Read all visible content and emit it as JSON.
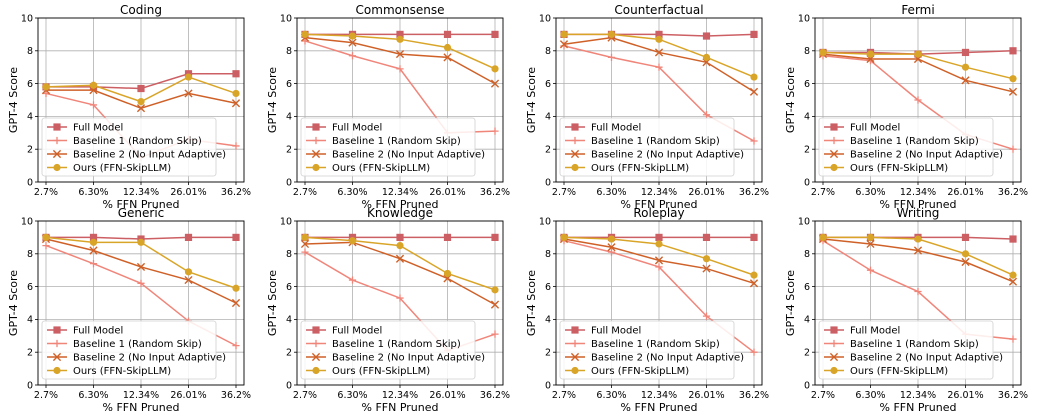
{
  "chart_data": [
    {
      "type": "line",
      "title": "Coding",
      "xlabel": "% FFN Pruned",
      "ylabel": "GPT-4 Score",
      "categories": [
        "2.7%",
        "6.30%",
        "12.34%",
        "26.01%",
        "36.2%"
      ],
      "ylim": [
        0,
        10
      ],
      "yticks": [
        0,
        2,
        4,
        6,
        8,
        10
      ],
      "grid": true,
      "legend_position": "lower-left",
      "series": [
        {
          "name": "Full Model",
          "values": [
            5.8,
            5.8,
            5.7,
            6.6,
            6.6
          ]
        },
        {
          "name": "Baseline 1 (Random Skip)",
          "values": [
            5.4,
            4.7,
            1.5,
            2.6,
            2.2
          ]
        },
        {
          "name": "Baseline 2 (No Input Adaptive)",
          "values": [
            5.6,
            5.6,
            4.5,
            5.4,
            4.8
          ]
        },
        {
          "name": "Ours (FFN-SkipLLM)",
          "values": [
            5.8,
            5.9,
            4.9,
            6.4,
            5.4
          ]
        }
      ]
    },
    {
      "type": "line",
      "title": "Commonsense",
      "xlabel": "% FFN Pruned",
      "ylabel": "GPT-4 Score",
      "categories": [
        "2.7%",
        "6.30%",
        "12.34%",
        "26.01%",
        "36.2%"
      ],
      "ylim": [
        0,
        10
      ],
      "yticks": [
        0,
        2,
        4,
        6,
        8,
        10
      ],
      "grid": true,
      "legend_position": "lower-left",
      "series": [
        {
          "name": "Full Model",
          "values": [
            9.0,
            9.0,
            9.0,
            9.0,
            9.0
          ]
        },
        {
          "name": "Baseline 1 (Random Skip)",
          "values": [
            8.6,
            7.7,
            6.9,
            3.0,
            3.1
          ]
        },
        {
          "name": "Baseline 2 (No Input Adaptive)",
          "values": [
            8.8,
            8.5,
            7.8,
            7.6,
            6.0
          ]
        },
        {
          "name": "Ours (FFN-SkipLLM)",
          "values": [
            9.0,
            8.9,
            8.7,
            8.2,
            6.9
          ]
        }
      ]
    },
    {
      "type": "line",
      "title": "Counterfactual",
      "xlabel": "% FFN Pruned",
      "ylabel": "GPT-4 Score",
      "categories": [
        "2.7%",
        "6.30%",
        "12.34%",
        "26.01%",
        "36.2%"
      ],
      "ylim": [
        0,
        10
      ],
      "yticks": [
        0,
        2,
        4,
        6,
        8,
        10
      ],
      "grid": true,
      "legend_position": "lower-left",
      "series": [
        {
          "name": "Full Model",
          "values": [
            9.0,
            9.0,
            9.0,
            8.9,
            9.0
          ]
        },
        {
          "name": "Baseline 1 (Random Skip)",
          "values": [
            8.3,
            7.6,
            7.0,
            4.1,
            2.5
          ]
        },
        {
          "name": "Baseline 2 (No Input Adaptive)",
          "values": [
            8.4,
            8.8,
            7.9,
            7.3,
            5.5
          ]
        },
        {
          "name": "Ours (FFN-SkipLLM)",
          "values": [
            9.0,
            9.0,
            8.7,
            7.6,
            6.4
          ]
        }
      ]
    },
    {
      "type": "line",
      "title": "Fermi",
      "xlabel": "% FFN Pruned",
      "ylabel": "GPT-4 Score",
      "categories": [
        "2.7%",
        "6.30%",
        "12.34%",
        "26.01%",
        "36.2%"
      ],
      "ylim": [
        0,
        10
      ],
      "yticks": [
        0,
        2,
        4,
        6,
        8,
        10
      ],
      "grid": true,
      "legend_position": "lower-left",
      "series": [
        {
          "name": "Full Model",
          "values": [
            7.9,
            7.9,
            7.8,
            7.9,
            8.0
          ]
        },
        {
          "name": "Baseline 1 (Random Skip)",
          "values": [
            7.7,
            7.4,
            5.0,
            2.9,
            2.0
          ]
        },
        {
          "name": "Baseline 2 (No Input Adaptive)",
          "values": [
            7.8,
            7.5,
            7.5,
            6.2,
            5.5
          ]
        },
        {
          "name": "Ours (FFN-SkipLLM)",
          "values": [
            7.9,
            7.8,
            7.8,
            7.0,
            6.3
          ]
        }
      ]
    },
    {
      "type": "line",
      "title": "Generic",
      "xlabel": "% FFN Pruned",
      "ylabel": "GPT-4 Score",
      "categories": [
        "2.7%",
        "6.30%",
        "12.34%",
        "26.01%",
        "36.2%"
      ],
      "ylim": [
        0,
        10
      ],
      "yticks": [
        0,
        2,
        4,
        6,
        8,
        10
      ],
      "grid": true,
      "legend_position": "lower-left",
      "series": [
        {
          "name": "Full Model",
          "values": [
            9.0,
            9.0,
            8.9,
            9.0,
            9.0
          ]
        },
        {
          "name": "Baseline 1 (Random Skip)",
          "values": [
            8.5,
            7.4,
            6.2,
            3.9,
            2.4
          ]
        },
        {
          "name": "Baseline 2 (No Input Adaptive)",
          "values": [
            8.9,
            8.2,
            7.2,
            6.4,
            5.0
          ]
        },
        {
          "name": "Ours (FFN-SkipLLM)",
          "values": [
            9.0,
            8.7,
            8.7,
            6.9,
            5.9
          ]
        }
      ]
    },
    {
      "type": "line",
      "title": "Knowledge",
      "xlabel": "% FFN Pruned",
      "ylabel": "GPT-4 Score",
      "categories": [
        "2.7%",
        "6.30%",
        "12.34%",
        "26.01%",
        "36.2%"
      ],
      "ylim": [
        0,
        10
      ],
      "yticks": [
        0,
        2,
        4,
        6,
        8,
        10
      ],
      "grid": true,
      "legend_position": "lower-left",
      "series": [
        {
          "name": "Full Model",
          "values": [
            9.0,
            9.0,
            9.0,
            9.0,
            9.0
          ]
        },
        {
          "name": "Baseline 1 (Random Skip)",
          "values": [
            8.1,
            6.4,
            5.3,
            2.1,
            3.1
          ]
        },
        {
          "name": "Baseline 2 (No Input Adaptive)",
          "values": [
            8.6,
            8.7,
            7.7,
            6.5,
            4.9
          ]
        },
        {
          "name": "Ours (FFN-SkipLLM)",
          "values": [
            9.0,
            8.8,
            8.5,
            6.8,
            5.8
          ]
        }
      ]
    },
    {
      "type": "line",
      "title": "Roleplay",
      "xlabel": "% FFN Pruned",
      "ylabel": "GPT-4 Score",
      "categories": [
        "2.7%",
        "6.30%",
        "12.34%",
        "26.01%",
        "36.2%"
      ],
      "ylim": [
        0,
        10
      ],
      "yticks": [
        0,
        2,
        4,
        6,
        8,
        10
      ],
      "grid": true,
      "legend_position": "lower-left",
      "series": [
        {
          "name": "Full Model",
          "values": [
            9.0,
            9.0,
            9.0,
            9.0,
            9.0
          ]
        },
        {
          "name": "Baseline 1 (Random Skip)",
          "values": [
            8.8,
            8.1,
            7.2,
            4.2,
            2.0
          ]
        },
        {
          "name": "Baseline 2 (No Input Adaptive)",
          "values": [
            8.9,
            8.4,
            7.6,
            7.1,
            6.2
          ]
        },
        {
          "name": "Ours (FFN-SkipLLM)",
          "values": [
            9.0,
            8.9,
            8.6,
            7.7,
            6.7
          ]
        }
      ]
    },
    {
      "type": "line",
      "title": "Writing",
      "xlabel": "% FFN Pruned",
      "ylabel": "GPT-4 Score",
      "categories": [
        "2.7%",
        "6.30%",
        "12.34%",
        "26.01%",
        "36.2%"
      ],
      "ylim": [
        0,
        10
      ],
      "yticks": [
        0,
        2,
        4,
        6,
        8,
        10
      ],
      "grid": true,
      "legend_position": "lower-left",
      "series": [
        {
          "name": "Full Model",
          "values": [
            9.0,
            9.0,
            9.0,
            9.0,
            8.9
          ]
        },
        {
          "name": "Baseline 1 (Random Skip)",
          "values": [
            8.8,
            7.0,
            5.7,
            3.1,
            2.8
          ]
        },
        {
          "name": "Baseline 2 (No Input Adaptive)",
          "values": [
            8.9,
            8.6,
            8.2,
            7.5,
            6.3
          ]
        },
        {
          "name": "Ours (FFN-SkipLLM)",
          "values": [
            9.0,
            9.0,
            8.9,
            8.0,
            6.7
          ]
        }
      ]
    }
  ],
  "colors": {
    "Full Model": "#cc5f63",
    "Baseline 1 (Random Skip)": "#f0857a",
    "Baseline 2 (No Input Adaptive)": "#cf6128",
    "Ours (FFN-SkipLLM)": "#d9a528"
  },
  "markers": {
    "Full Model": "square",
    "Baseline 1 (Random Skip)": "plus",
    "Baseline 2 (No Input Adaptive)": "x",
    "Ours (FFN-SkipLLM)": "circle"
  }
}
